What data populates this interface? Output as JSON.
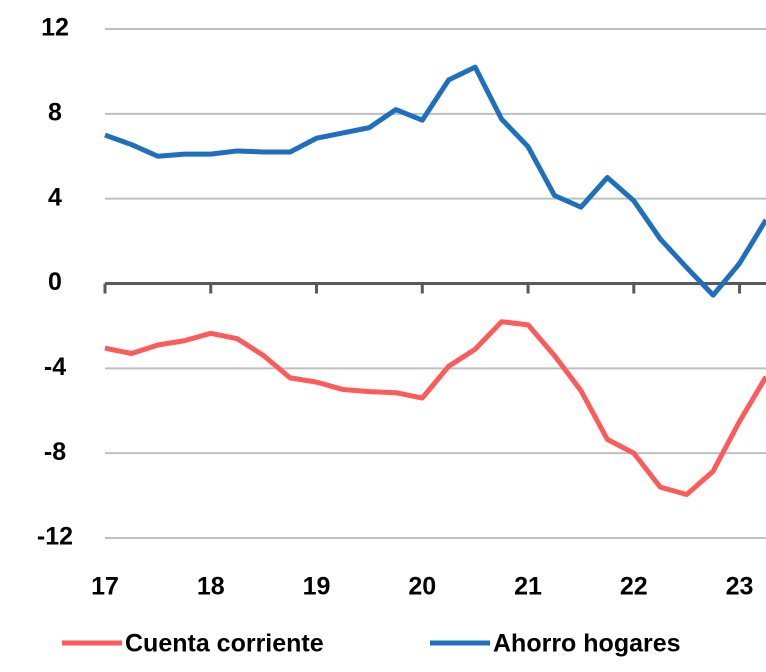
{
  "chart_data": {
    "type": "line",
    "x": [
      17,
      17.25,
      17.5,
      17.75,
      18,
      18.25,
      18.5,
      18.75,
      19,
      19.25,
      19.5,
      19.75,
      20,
      20.25,
      20.5,
      20.75,
      21,
      21.25,
      21.5,
      21.75,
      22,
      22.25,
      22.5,
      22.75,
      23,
      23.25
    ],
    "series": [
      {
        "name": "Cuenta corriente",
        "color": "#ff5a5a",
        "values": [
          -3.05,
          -3.3,
          -2.9,
          -2.7,
          -2.35,
          -2.6,
          -3.4,
          -4.45,
          -4.65,
          -5.0,
          -5.1,
          -5.15,
          -5.4,
          -3.9,
          -3.1,
          -1.8,
          -1.95,
          -3.4,
          -5.05,
          -7.35,
          -8.0,
          -9.6,
          -9.95,
          -8.85,
          -6.5,
          -4.4
        ]
      },
      {
        "name": "Ahorro hogares",
        "color": "#1f6fbf",
        "values": [
          7.0,
          6.55,
          6.0,
          6.1,
          6.1,
          6.25,
          6.2,
          6.2,
          6.85,
          7.1,
          7.35,
          8.2,
          7.7,
          9.6,
          10.2,
          7.75,
          6.45,
          4.15,
          3.6,
          5.0,
          3.9,
          2.1,
          0.75,
          -0.55,
          0.95,
          3.0
        ]
      }
    ],
    "xlim": [
      17,
      23.25
    ],
    "xticks": [
      17,
      18,
      19,
      20,
      21,
      22,
      23
    ],
    "ylim": [
      -12,
      12
    ],
    "yticks": [
      -12,
      -8,
      -4,
      0,
      4,
      8,
      12
    ],
    "grid": true,
    "legend": "bottom"
  }
}
